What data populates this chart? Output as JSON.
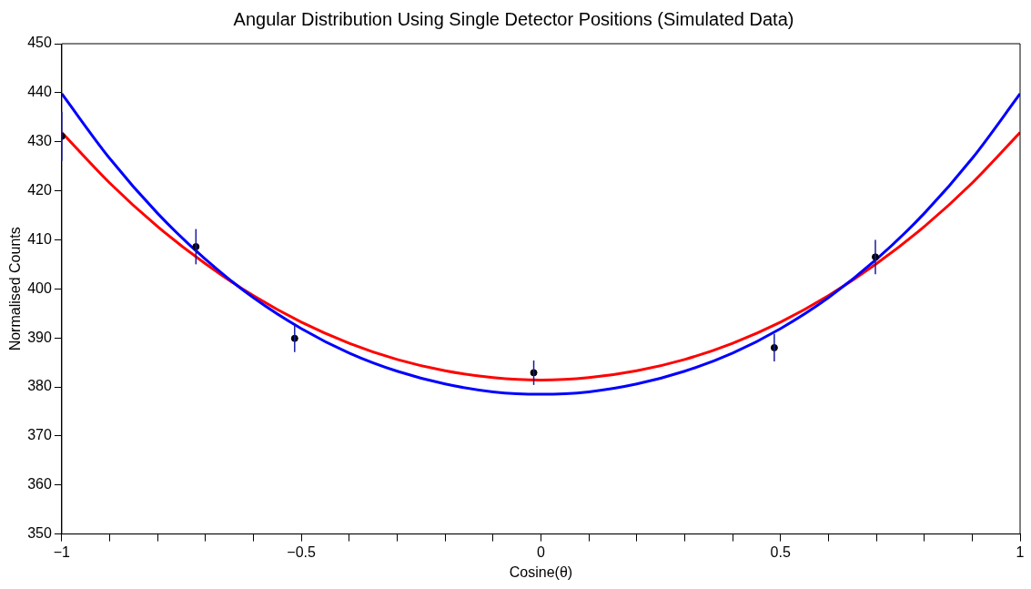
{
  "chart_data": {
    "type": "scatter",
    "title": "Angular Distribution Using Single Detector Positions (Simulated Data)",
    "xlabel": "Cosine(θ)",
    "ylabel": "Normalised Counts",
    "xlim": [
      -1,
      1
    ],
    "ylim": [
      350,
      450
    ],
    "xticks": [
      {
        "value": -1,
        "label": "−1"
      },
      {
        "value": -0.9,
        "label": null
      },
      {
        "value": -0.8,
        "label": null
      },
      {
        "value": -0.7,
        "label": null
      },
      {
        "value": -0.6,
        "label": null
      },
      {
        "value": -0.5,
        "label": "−0.5"
      },
      {
        "value": -0.4,
        "label": null
      },
      {
        "value": -0.3,
        "label": null
      },
      {
        "value": -0.2,
        "label": null
      },
      {
        "value": -0.1,
        "label": null
      },
      0,
      {
        "value": 0.1,
        "label": null
      },
      {
        "value": 0.2,
        "label": null
      },
      {
        "value": 0.3,
        "label": null
      },
      {
        "value": 0.4,
        "label": null
      },
      0.5,
      {
        "value": 0.6,
        "label": null
      },
      {
        "value": 0.7,
        "label": null
      },
      {
        "value": 0.8,
        "label": null
      },
      {
        "value": 0.9,
        "label": null
      },
      1
    ],
    "yticks": [
      350,
      360,
      370,
      380,
      390,
      400,
      410,
      420,
      430,
      440,
      450
    ],
    "grid": false,
    "legend": false,
    "series": [
      {
        "type": "line",
        "color": "#0000ff",
        "x": [
          -1,
          -0.9,
          -0.8,
          -0.7,
          -0.6,
          -0.5,
          -0.4,
          -0.3,
          -0.2,
          -0.1,
          0,
          0.1,
          0.2,
          0.3,
          0.4,
          0.5,
          0.6,
          0.7,
          0.8,
          0.9,
          1
        ],
        "values": [
          439.8,
          426.6,
          415.4,
          406.0,
          398.2,
          391.9,
          386.9,
          383.2,
          380.6,
          379.0,
          378.5,
          379.0,
          380.6,
          383.2,
          386.9,
          391.9,
          398.2,
          406.0,
          415.4,
          426.6,
          439.8
        ]
      },
      {
        "type": "line",
        "color": "#ff0000",
        "x": [
          -1,
          -0.9,
          -0.8,
          -0.7,
          -0.6,
          -0.5,
          -0.4,
          -0.3,
          -0.2,
          -0.1,
          0,
          0.1,
          0.2,
          0.3,
          0.4,
          0.5,
          0.6,
          0.7,
          0.8,
          0.9,
          1
        ],
        "values": [
          431.9,
          421.6,
          412.7,
          405.1,
          398.6,
          393.2,
          388.9,
          385.6,
          383.3,
          381.9,
          381.4,
          381.9,
          383.3,
          385.6,
          388.9,
          393.2,
          398.6,
          405.1,
          412.7,
          421.6,
          431.9
        ]
      },
      {
        "type": "scatter",
        "marker": "circle",
        "color": "#000000",
        "x": [
          -1.0,
          -0.72,
          -0.514,
          -0.015,
          0.487,
          0.698
        ],
        "values": [
          431.1,
          408.6,
          389.9,
          382.9,
          388.0,
          406.5
        ],
        "errors": [
          5.0,
          3.6,
          2.8,
          2.5,
          2.8,
          3.5
        ]
      }
    ]
  }
}
